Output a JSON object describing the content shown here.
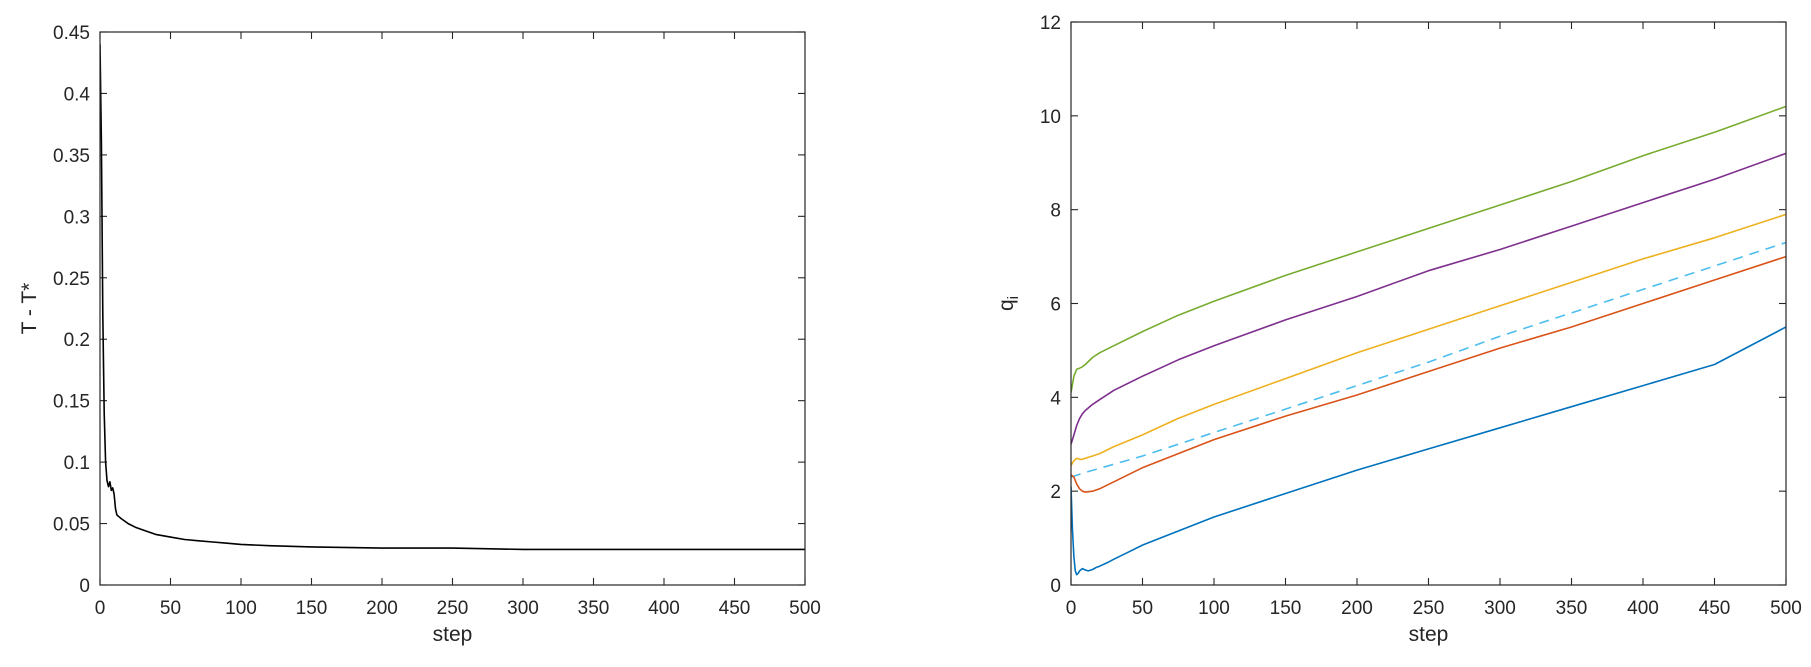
{
  "chart_data": [
    {
      "type": "line",
      "xlabel": "step",
      "ylabel": "T - T*",
      "xlim": [
        0,
        500
      ],
      "ylim": [
        0,
        0.45
      ],
      "xticks": [
        "0",
        "50",
        "100",
        "150",
        "200",
        "250",
        "300",
        "350",
        "400",
        "450",
        "500"
      ],
      "yticks": [
        "0",
        "0.05",
        "0.1",
        "0.15",
        "0.2",
        "0.25",
        "0.3",
        "0.35",
        "0.4",
        "0.45"
      ],
      "grid": false,
      "series": [
        {
          "color": "#000000",
          "dash": "solid",
          "x": [
            0,
            1,
            2,
            3,
            4,
            5,
            6,
            7,
            8,
            9,
            10,
            11,
            12,
            13,
            15,
            20,
            25,
            30,
            40,
            50,
            60,
            70,
            80,
            90,
            100,
            120,
            150,
            200,
            250,
            300,
            350,
            400,
            450,
            500
          ],
          "y": [
            0.44,
            0.36,
            0.22,
            0.14,
            0.1,
            0.085,
            0.08,
            0.084,
            0.077,
            0.079,
            0.074,
            0.062,
            0.057,
            0.056,
            0.054,
            0.05,
            0.047,
            0.045,
            0.041,
            0.039,
            0.037,
            0.036,
            0.035,
            0.034,
            0.033,
            0.032,
            0.031,
            0.03,
            0.03,
            0.029,
            0.029,
            0.029,
            0.029,
            0.029
          ]
        }
      ]
    },
    {
      "type": "line",
      "xlabel": "step",
      "ylabel": "q",
      "ylabel_subscript": "i",
      "xlim": [
        0,
        500
      ],
      "ylim": [
        0,
        12
      ],
      "xticks": [
        "0",
        "50",
        "100",
        "150",
        "200",
        "250",
        "300",
        "350",
        "400",
        "450",
        "500"
      ],
      "yticks": [
        "0",
        "2",
        "4",
        "6",
        "8",
        "10",
        "12"
      ],
      "grid": false,
      "series": [
        {
          "color": "#77ac30",
          "dash": "solid",
          "x": [
            0,
            2,
            4,
            6,
            8,
            10,
            15,
            20,
            30,
            50,
            75,
            100,
            150,
            200,
            250,
            300,
            350,
            400,
            450,
            500
          ],
          "y": [
            4.1,
            4.45,
            4.6,
            4.62,
            4.65,
            4.7,
            4.85,
            4.95,
            5.1,
            5.4,
            5.75,
            6.05,
            6.6,
            7.1,
            7.6,
            8.1,
            8.6,
            9.15,
            9.65,
            10.2
          ]
        },
        {
          "color": "#7e2f8e",
          "dash": "solid",
          "x": [
            0,
            2,
            4,
            6,
            8,
            10,
            15,
            20,
            30,
            50,
            75,
            100,
            150,
            200,
            250,
            300,
            350,
            400,
            450,
            500
          ],
          "y": [
            3.0,
            3.2,
            3.4,
            3.55,
            3.65,
            3.72,
            3.85,
            3.95,
            4.15,
            4.45,
            4.8,
            5.1,
            5.65,
            6.15,
            6.7,
            7.15,
            7.65,
            8.15,
            8.65,
            9.2
          ]
        },
        {
          "color": "#edb120",
          "dash": "solid",
          "x": [
            0,
            2,
            4,
            6,
            8,
            10,
            15,
            20,
            30,
            50,
            75,
            100,
            150,
            200,
            250,
            300,
            350,
            400,
            450,
            500
          ],
          "y": [
            2.55,
            2.65,
            2.7,
            2.68,
            2.68,
            2.7,
            2.75,
            2.8,
            2.95,
            3.2,
            3.55,
            3.85,
            4.4,
            4.95,
            5.45,
            5.95,
            6.45,
            6.95,
            7.4,
            7.9
          ]
        },
        {
          "color": "#4dbeee",
          "dash": "dashed",
          "x": [
            0,
            10,
            50,
            100,
            150,
            200,
            250,
            300,
            350,
            400,
            450,
            500
          ],
          "y": [
            2.3,
            2.4,
            2.75,
            3.25,
            3.75,
            4.25,
            4.75,
            5.3,
            5.8,
            6.3,
            6.8,
            7.3
          ]
        },
        {
          "color": "#d95319",
          "dash": "solid",
          "x": [
            0,
            2,
            4,
            6,
            8,
            10,
            15,
            20,
            30,
            50,
            75,
            100,
            150,
            200,
            250,
            300,
            350,
            400,
            450,
            500
          ],
          "y": [
            2.35,
            2.3,
            2.15,
            2.05,
            2.0,
            1.98,
            2.0,
            2.05,
            2.2,
            2.5,
            2.8,
            3.1,
            3.6,
            4.05,
            4.55,
            5.05,
            5.5,
            6.0,
            6.5,
            7.0
          ]
        },
        {
          "color": "#0072bd",
          "dash": "solid",
          "x": [
            0,
            1,
            2,
            3,
            4,
            5,
            6,
            8,
            10,
            12,
            15,
            18,
            20,
            25,
            30,
            40,
            50,
            75,
            100,
            150,
            200,
            250,
            300,
            350,
            400,
            450,
            500
          ],
          "y": [
            2.1,
            1.2,
            0.6,
            0.3,
            0.22,
            0.25,
            0.3,
            0.35,
            0.32,
            0.3,
            0.33,
            0.38,
            0.4,
            0.47,
            0.55,
            0.7,
            0.85,
            1.15,
            1.45,
            1.95,
            2.45,
            2.9,
            3.35,
            3.8,
            4.25,
            4.7,
            5.5
          ]
        }
      ]
    }
  ]
}
